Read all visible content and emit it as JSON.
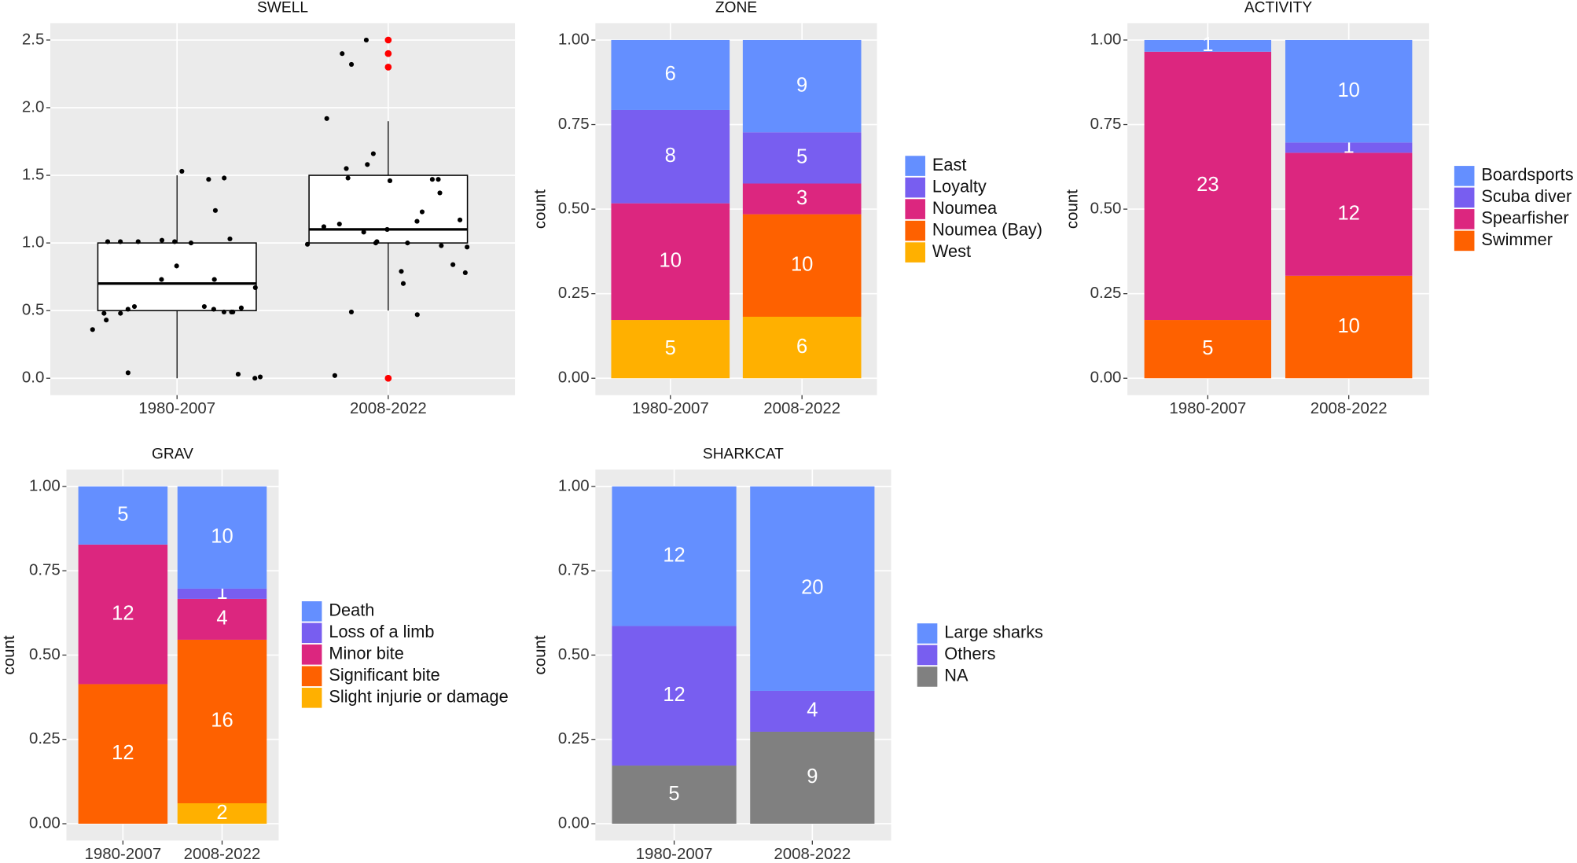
{
  "chart_data": [
    {
      "type": "box",
      "title": "SWELL",
      "categories": [
        "1980-2007",
        "2008-2022"
      ],
      "boxes": [
        {
          "min": 0,
          "q1": 0.5,
          "median": 0.7,
          "q3": 1.0,
          "max": 1.5,
          "points": [
            0,
            1.53,
            1.48,
            1.47,
            1.24,
            1.03,
            1.0,
            1.01,
            1.01,
            1.01,
            1.02,
            1.01,
            0.83,
            0.73,
            0.73,
            0.67,
            0.51,
            0.49,
            0.53,
            0.52,
            0.49,
            0.49,
            0.51,
            0.48,
            0.48,
            0.53,
            0.36,
            0.43,
            0.04,
            0.01,
            0.03
          ],
          "outliers": []
        },
        {
          "min": 0.5,
          "q1": 1.0,
          "median": 1.1,
          "q3": 1.5,
          "max": 1.9,
          "points": [
            2.5,
            2.32,
            2.4,
            1.92,
            1.66,
            1.58,
            1.55,
            1.48,
            1.47,
            1.46,
            1.47,
            1.37,
            1.23,
            1.17,
            1.16,
            1.14,
            1.12,
            1.1,
            1.08,
            1.01,
            1.0,
            0.99,
            0.98,
            0.97,
            1.0,
            0.84,
            0.79,
            0.78,
            0.7,
            0.47,
            0.49,
            0.02
          ],
          "outliers": [
            2.5,
            2.4,
            2.3,
            0
          ]
        }
      ],
      "ylim": [
        -0.125,
        2.625
      ],
      "yticks": [
        {
          "value": 0,
          "label": "0.0"
        },
        0.5,
        {
          "value": 1,
          "label": "1.0"
        },
        1.5,
        {
          "value": 2,
          "label": "2.0"
        },
        2.5
      ],
      "grid": true,
      "box_color": "#000000",
      "point_color": "#000000",
      "outlier_color": "#ff0000"
    },
    {
      "type": "bar",
      "title": "ZONE",
      "ylabel": "count",
      "stacking": "fill",
      "categories": [
        "1980-2007",
        "2008-2022"
      ],
      "series": [
        {
          "name": "East",
          "color": "#648fff",
          "values": [
            6,
            9
          ]
        },
        {
          "name": "Loyalty",
          "color": "#785ef0",
          "values": [
            8,
            5
          ]
        },
        {
          "name": "Noumea",
          "color": "#dc267f",
          "values": [
            10,
            3
          ]
        },
        {
          "name": "Noumea (Bay)",
          "color": "#fe6100",
          "values": [
            null,
            10
          ]
        },
        {
          "name": "West",
          "color": "#ffb000",
          "values": [
            5,
            6
          ]
        }
      ],
      "ylim": [
        -0.05,
        1.05
      ],
      "yticks": [
        {
          "value": 0,
          "label": "0.00"
        },
        {
          "value": 0.25,
          "label": "0.25"
        },
        {
          "value": 0.5,
          "label": "0.50"
        },
        {
          "value": 0.75,
          "label": "0.75"
        },
        {
          "value": 1,
          "label": "1.00"
        }
      ],
      "grid": true
    },
    {
      "type": "bar",
      "title": "ACTIVITY",
      "ylabel": "count",
      "stacking": "fill",
      "categories": [
        "1980-2007",
        "2008-2022"
      ],
      "series": [
        {
          "name": "Boardsports",
          "color": "#648fff",
          "values": [
            1,
            10
          ]
        },
        {
          "name": "Scuba diver",
          "color": "#785ef0",
          "values": [
            null,
            1
          ]
        },
        {
          "name": "Spearfisher",
          "color": "#dc267f",
          "values": [
            23,
            12
          ]
        },
        {
          "name": "Swimmer",
          "color": "#fe6100",
          "values": [
            5,
            10
          ]
        }
      ],
      "ylim": [
        -0.05,
        1.05
      ],
      "yticks": [
        {
          "value": 0,
          "label": "0.00"
        },
        {
          "value": 0.25,
          "label": "0.25"
        },
        {
          "value": 0.5,
          "label": "0.50"
        },
        {
          "value": 0.75,
          "label": "0.75"
        },
        {
          "value": 1,
          "label": "1.00"
        }
      ],
      "grid": true
    },
    {
      "type": "bar",
      "title": "GRAV",
      "ylabel": "count",
      "stacking": "fill",
      "categories": [
        "1980-2007",
        "2008-2022"
      ],
      "series": [
        {
          "name": "Death",
          "color": "#648fff",
          "values": [
            5,
            10
          ]
        },
        {
          "name": "Loss of a limb",
          "color": "#785ef0",
          "values": [
            null,
            1
          ]
        },
        {
          "name": "Minor bite",
          "color": "#dc267f",
          "values": [
            12,
            4
          ]
        },
        {
          "name": "Significant bite",
          "color": "#fe6100",
          "values": [
            12,
            16
          ]
        },
        {
          "name": "Slight injurie or damage",
          "color": "#ffb000",
          "values": [
            null,
            2
          ]
        }
      ],
      "ylim": [
        -0.05,
        1.05
      ],
      "yticks": [
        {
          "value": 0,
          "label": "0.00"
        },
        {
          "value": 0.25,
          "label": "0.25"
        },
        {
          "value": 0.5,
          "label": "0.50"
        },
        {
          "value": 0.75,
          "label": "0.75"
        },
        {
          "value": 1,
          "label": "1.00"
        }
      ],
      "grid": true
    },
    {
      "type": "bar",
      "title": "SHARKCAT",
      "ylabel": "count",
      "stacking": "fill",
      "categories": [
        "1980-2007",
        "2008-2022"
      ],
      "series": [
        {
          "name": "Large sharks",
          "color": "#648fff",
          "values": [
            12,
            20
          ]
        },
        {
          "name": "Others",
          "color": "#785ef0",
          "values": [
            12,
            4
          ]
        },
        {
          "name": "NA",
          "color": "#808080",
          "values": [
            5,
            9
          ]
        }
      ],
      "ylim": [
        -0.05,
        1.05
      ],
      "yticks": [
        {
          "value": 0,
          "label": "0.00"
        },
        {
          "value": 0.25,
          "label": "0.25"
        },
        {
          "value": 0.5,
          "label": "0.50"
        },
        {
          "value": 0.75,
          "label": "0.75"
        },
        {
          "value": 1,
          "label": "1.00"
        }
      ],
      "grid": true
    }
  ]
}
